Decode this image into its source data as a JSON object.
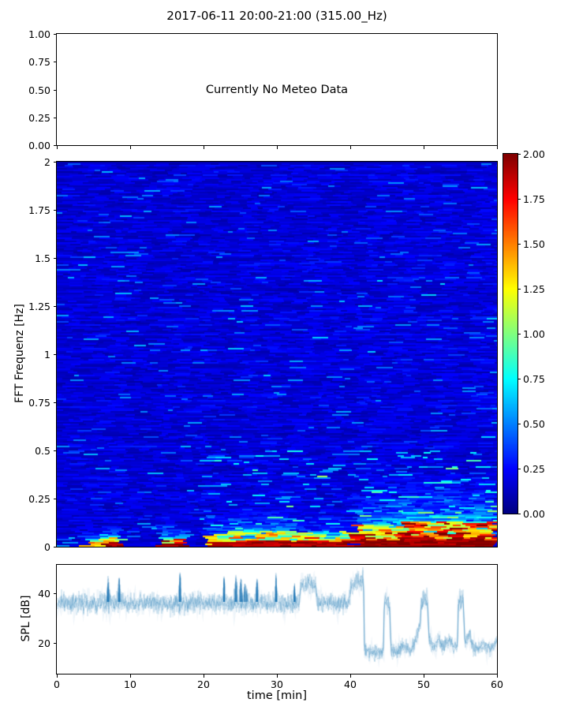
{
  "title": "2017-06-11 20:00-21:00 (315.00_Hz)",
  "colors": {
    "line": "#1f77b4",
    "axes": "#000000",
    "background": "#ffffff"
  },
  "meteo_panel": {
    "message": "Currently No Meteo Data",
    "ytick_labels": [
      "1.00",
      "0.75",
      "0.50",
      "0.25",
      "0.00"
    ]
  },
  "spectrogram_panel": {
    "ylabel": "FFT Frequenz [Hz]",
    "ytick_labels": [
      "2",
      "1.75",
      "1.5",
      "1.25",
      "1",
      "0.75",
      "0.5",
      "0.25",
      "0"
    ]
  },
  "colorbar": {
    "tick_labels": [
      "2.00",
      "1.75",
      "1.50",
      "1.25",
      "1.00",
      "0.75",
      "0.50",
      "0.25",
      "0.00"
    ],
    "vmin": 0,
    "vmax": 2,
    "colormap": "jet"
  },
  "spl_panel": {
    "ylabel": "SPL [dB]",
    "xlabel": "time [min]",
    "ytick_labels": [
      "40",
      "20"
    ],
    "ytick_values": [
      40,
      20
    ],
    "xtick_labels": [
      "0",
      "10",
      "20",
      "30",
      "40",
      "50",
      "60"
    ],
    "xtick_values": [
      0,
      10,
      20,
      30,
      40,
      50,
      60
    ]
  },
  "chart_data": [
    {
      "panel": "meteo",
      "type": "line",
      "series": [],
      "annotation": "Currently No Meteo Data",
      "ylim": [
        0,
        1
      ],
      "yticks": [
        1.0,
        0.75,
        0.5,
        0.25,
        0.0
      ],
      "xticks_min": [
        0,
        10,
        20,
        30,
        40,
        50,
        60
      ]
    },
    {
      "panel": "spectrogram",
      "type": "heatmap",
      "xlim": [
        0,
        60
      ],
      "ylim": [
        0,
        2
      ],
      "ylabel": "FFT Frequenz [Hz]",
      "colormap": "jet",
      "vmin": 0,
      "vmax": 2,
      "background_noise": {
        "base": 0.09,
        "spread": 0.17,
        "streak_chance": 0.05,
        "speckle_chance": 0.08
      },
      "features": [
        {
          "t0": 3.9,
          "t1": 6.3,
          "fmax": 0.1,
          "gain": 1.15,
          "red": false
        },
        {
          "t0": 6.3,
          "t1": 9.2,
          "fmax": 0.15,
          "gain": 1.0,
          "red": true
        },
        {
          "t0": 14.0,
          "t1": 17.7,
          "fmax": 0.13,
          "gain": 1.25,
          "red": true
        },
        {
          "t0": 20.6,
          "t1": 24.0,
          "fmax": 0.2,
          "gain": 0.85,
          "red": true
        },
        {
          "t0": 24.0,
          "t1": 33.2,
          "fmax": 0.26,
          "gain": 0.8,
          "red": true
        },
        {
          "t0": 33.2,
          "t1": 40.2,
          "fmax": 0.22,
          "gain": 0.7,
          "red": true
        },
        {
          "t0": 40.6,
          "t1": 47.0,
          "fmax": 0.36,
          "gain": 1.0,
          "red": true
        },
        {
          "t0": 47.0,
          "t1": 60.0,
          "fmax": 0.42,
          "gain": 1.1,
          "red": true
        }
      ],
      "bottom_bands": [
        {
          "t0": 3.9,
          "t1": 6.3,
          "fmax": 0.018,
          "value": 1.3
        },
        {
          "t0": 6.3,
          "t1": 9.2,
          "fmax": 0.018,
          "value": 1.95
        },
        {
          "t0": 14.0,
          "t1": 17.7,
          "fmax": 0.02,
          "value": 1.95
        },
        {
          "t0": 21.0,
          "t1": 40.2,
          "fmax": 0.022,
          "value": 1.92
        },
        {
          "t0": 40.6,
          "t1": 60.0,
          "fmax": 0.03,
          "value": 1.95
        }
      ],
      "bright_columns": [
        42.3,
        47.6,
        52.3,
        56.8
      ]
    },
    {
      "panel": "spl",
      "type": "line",
      "xlabel": "time [min]",
      "ylabel": "SPL [dB]",
      "xlim": [
        0,
        60
      ],
      "ylim": [
        7.6,
        51.4
      ],
      "color": "#1f77b4",
      "noise_sigma_db": {
        "high": 2.0,
        "low": 1.5
      },
      "baseline": [
        [
          0,
          36
        ],
        [
          33.0,
          36
        ],
        [
          33.25,
          43.5
        ],
        [
          35.3,
          43.5
        ],
        [
          35.55,
          36
        ],
        [
          39.8,
          36
        ],
        [
          40.1,
          42.5
        ],
        [
          41.8,
          45.5
        ],
        [
          41.95,
          16.5
        ],
        [
          44.5,
          16
        ],
        [
          44.65,
          36.5
        ],
        [
          45.35,
          36.5
        ],
        [
          45.55,
          17
        ],
        [
          46.5,
          16.5
        ],
        [
          47.2,
          19
        ],
        [
          48.2,
          17
        ],
        [
          49.1,
          22
        ],
        [
          49.55,
          28
        ],
        [
          49.7,
          37
        ],
        [
          50.5,
          37
        ],
        [
          50.75,
          21
        ],
        [
          51.5,
          18.5
        ],
        [
          52.1,
          21
        ],
        [
          52.7,
          18.5
        ],
        [
          53.4,
          21.5
        ],
        [
          54.2,
          17.5
        ],
        [
          54.6,
          18
        ],
        [
          54.75,
          37
        ],
        [
          55.4,
          37
        ],
        [
          55.65,
          19
        ],
        [
          56.2,
          23.5
        ],
        [
          56.9,
          17.5
        ],
        [
          58.0,
          19
        ],
        [
          59.2,
          17.5
        ],
        [
          60,
          20.5
        ]
      ],
      "spikes": [
        [
          7.0,
          47,
          0.18
        ],
        [
          8.5,
          46.5,
          0.3
        ],
        [
          16.8,
          48.5,
          0.2
        ],
        [
          22.8,
          47,
          0.18
        ],
        [
          24.4,
          47.5,
          0.3
        ],
        [
          25.1,
          46,
          0.3
        ],
        [
          25.7,
          44,
          0.45
        ],
        [
          27.3,
          46.5,
          0.2
        ],
        [
          29.9,
          48.5,
          0.2
        ],
        [
          32.4,
          44,
          0.15
        ]
      ]
    }
  ]
}
